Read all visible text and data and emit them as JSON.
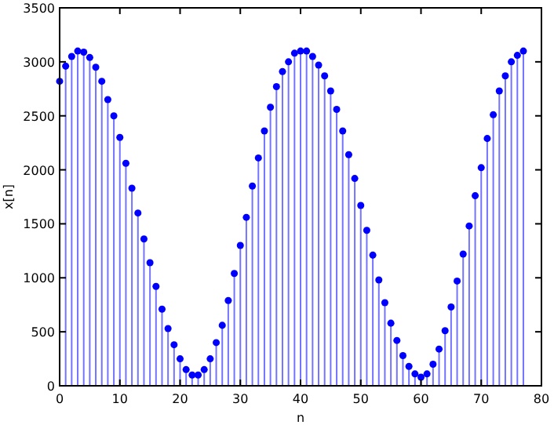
{
  "chart_data": {
    "type": "lollipop",
    "xlabel": "n",
    "ylabel": "x[n]",
    "color": "#0000ff",
    "marker": "circle",
    "grid": false,
    "x": [
      0,
      1,
      2,
      3,
      4,
      5,
      6,
      7,
      8,
      9,
      10,
      11,
      12,
      13,
      14,
      15,
      16,
      17,
      18,
      19,
      20,
      21,
      22,
      23,
      24,
      25,
      26,
      27,
      28,
      29,
      30,
      31,
      32,
      33,
      34,
      35,
      36,
      37,
      38,
      39,
      40,
      41,
      42,
      43,
      44,
      45,
      46,
      47,
      48,
      49,
      50,
      51,
      52,
      53,
      54,
      55,
      56,
      57,
      58,
      59,
      60,
      61,
      62,
      63,
      64,
      65,
      66,
      67,
      68,
      69,
      70,
      71,
      72,
      73,
      74,
      75,
      76,
      77
    ],
    "values": [
      2820,
      2960,
      3050,
      3100,
      3090,
      3040,
      2950,
      2820,
      2650,
      2500,
      2300,
      2060,
      1830,
      1600,
      1360,
      1140,
      920,
      710,
      530,
      380,
      250,
      150,
      100,
      100,
      150,
      250,
      400,
      560,
      790,
      1040,
      1300,
      1560,
      1850,
      2110,
      2360,
      2580,
      2770,
      2910,
      3000,
      3080,
      3100,
      3100,
      3050,
      2970,
      2870,
      2730,
      2560,
      2360,
      2140,
      1920,
      1670,
      1440,
      1210,
      980,
      770,
      580,
      420,
      280,
      180,
      110,
      80,
      110,
      200,
      340,
      510,
      730,
      970,
      1220,
      1480,
      1760,
      2020,
      2290,
      2510,
      2730,
      2870,
      3000,
      3060,
      3100
    ],
    "xlim": [
      0,
      80
    ],
    "xticks": [
      0,
      10,
      20,
      30,
      40,
      50,
      60,
      70,
      80
    ],
    "ylim": [
      0,
      3500
    ],
    "yticks": [
      0,
      500,
      1000,
      1500,
      2000,
      2500,
      3000,
      3500
    ]
  }
}
